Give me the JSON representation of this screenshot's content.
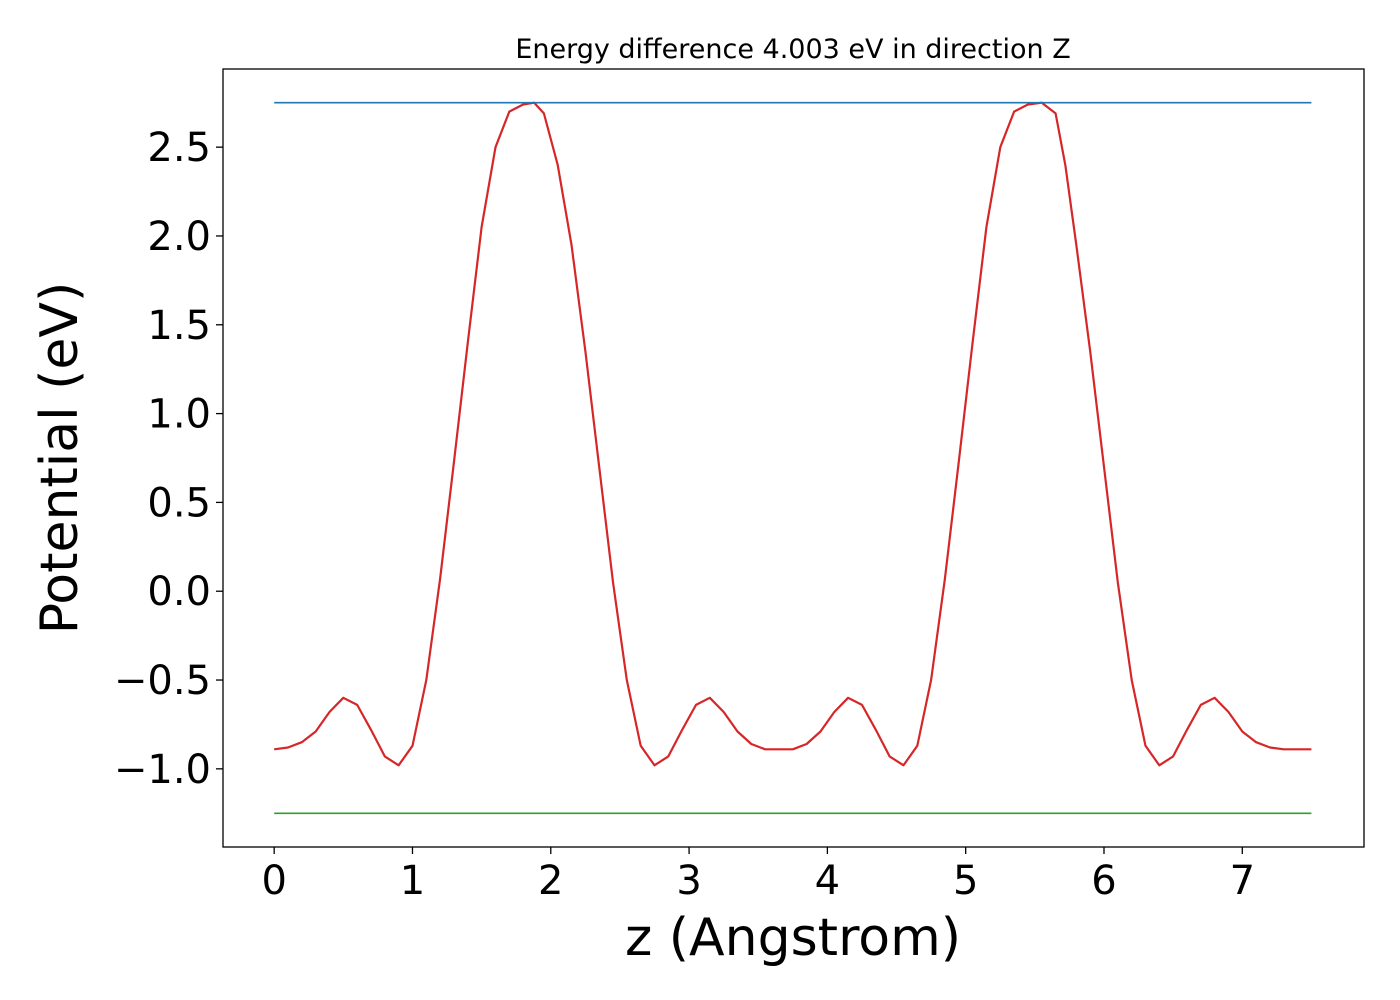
{
  "chart_data": {
    "type": "line",
    "title": "Energy difference 4.003 eV in direction Z",
    "xlabel": "z (Angstrom)",
    "ylabel": "Potential (eV)",
    "xlim": [
      -0.37,
      7.88
    ],
    "ylim": [
      -1.44,
      2.94
    ],
    "xticks": [
      0,
      1,
      2,
      3,
      4,
      5,
      6,
      7
    ],
    "xtick_labels": [
      "0",
      "1",
      "2",
      "3",
      "4",
      "5",
      "6",
      "7"
    ],
    "yticks": [
      -1.0,
      -0.5,
      0.0,
      0.5,
      1.0,
      1.5,
      2.0,
      2.5
    ],
    "ytick_labels": [
      "−1.0",
      "−0.5",
      "0.0",
      "0.5",
      "1.0",
      "1.5",
      "2.0",
      "2.5"
    ],
    "grid": false,
    "series": [
      {
        "color": "#d62728",
        "x": [
          0.0,
          0.1,
          0.2,
          0.3,
          0.4,
          0.5,
          0.6,
          0.7,
          0.8,
          0.9,
          1.0,
          1.1,
          1.2,
          1.3,
          1.4,
          1.5,
          1.6,
          1.7,
          1.8,
          1.88,
          1.95,
          2.05,
          2.15,
          2.25,
          2.35,
          2.45,
          2.55,
          2.65,
          2.75,
          2.85,
          2.95,
          3.05,
          3.15,
          3.25,
          3.35,
          3.45,
          3.55,
          3.65,
          3.75,
          3.85,
          3.95,
          4.05,
          4.15,
          4.25,
          4.35,
          4.45,
          4.55,
          4.65,
          4.75,
          4.85,
          4.95,
          5.05,
          5.15,
          5.25,
          5.35,
          5.45,
          5.55,
          5.65,
          5.72,
          5.8,
          5.9,
          6.0,
          6.1,
          6.2,
          6.3,
          6.4,
          6.5,
          6.6,
          6.7,
          6.8,
          6.9,
          7.0,
          7.1,
          7.2,
          7.3,
          7.4,
          7.5
        ],
        "y": [
          -0.89,
          -0.88,
          -0.85,
          -0.79,
          -0.68,
          -0.6,
          -0.64,
          -0.78,
          -0.93,
          -0.98,
          -0.87,
          -0.5,
          0.07,
          0.73,
          1.4,
          2.05,
          2.5,
          2.7,
          2.74,
          2.75,
          2.69,
          2.4,
          1.95,
          1.35,
          0.7,
          0.05,
          -0.5,
          -0.87,
          -0.98,
          -0.93,
          -0.78,
          -0.64,
          -0.6,
          -0.68,
          -0.79,
          -0.86,
          -0.89,
          -0.89,
          -0.89,
          -0.86,
          -0.79,
          -0.68,
          -0.6,
          -0.64,
          -0.78,
          -0.93,
          -0.98,
          -0.87,
          -0.5,
          0.07,
          0.73,
          1.4,
          2.05,
          2.5,
          2.7,
          2.74,
          2.75,
          2.69,
          2.4,
          1.95,
          1.35,
          0.7,
          0.05,
          -0.5,
          -0.87,
          -0.98,
          -0.93,
          -0.78,
          -0.64,
          -0.6,
          -0.68,
          -0.79,
          -0.85,
          -0.88,
          -0.89,
          -0.89,
          -0.89
        ]
      },
      {
        "color": "#1f77b4",
        "x": [
          0.0,
          7.5
        ],
        "y": [
          2.75,
          2.75
        ]
      },
      {
        "color": "#2ca02c",
        "x": [
          0.0,
          7.5
        ],
        "y": [
          -1.25,
          -1.25
        ]
      }
    ]
  }
}
